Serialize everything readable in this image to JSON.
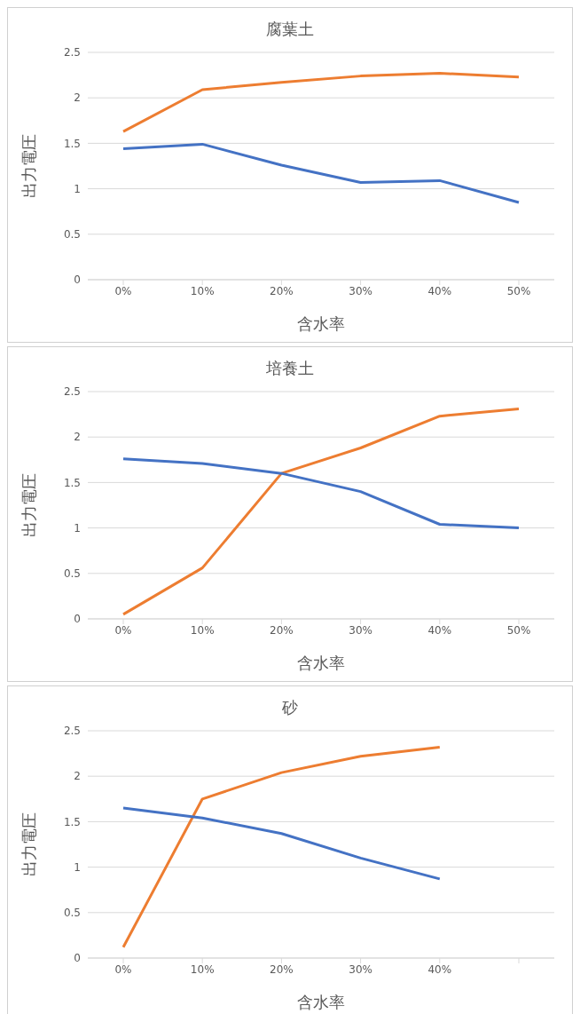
{
  "chart_data": [
    {
      "type": "line",
      "title": "腐葉土",
      "xlabel": "含水率",
      "ylabel": "出力電圧",
      "categories": [
        "0%",
        "10%",
        "20%",
        "30%",
        "40%",
        "50%"
      ],
      "ylim": [
        0,
        2.5
      ],
      "yticks": [
        0,
        0.5,
        1,
        1.5,
        2,
        2.5
      ],
      "grid": "y",
      "marker": "none",
      "series": [
        {
          "color": "#ed7d31",
          "values": [
            1.63,
            2.09,
            2.17,
            2.24,
            2.27,
            2.23
          ]
        },
        {
          "color": "#4472c4",
          "values": [
            1.44,
            1.49,
            1.26,
            1.07,
            1.09,
            0.85
          ]
        }
      ]
    },
    {
      "type": "line",
      "title": "培養土",
      "xlabel": "含水率",
      "ylabel": "出力電圧",
      "categories": [
        "0%",
        "10%",
        "20%",
        "30%",
        "40%",
        "50%"
      ],
      "ylim": [
        0,
        2.5
      ],
      "yticks": [
        0,
        0.5,
        1,
        1.5,
        2,
        2.5
      ],
      "grid": "y",
      "marker": "none",
      "series": [
        {
          "color": "#ed7d31",
          "values": [
            0.05,
            0.56,
            1.6,
            1.88,
            2.23,
            2.31
          ]
        },
        {
          "color": "#4472c4",
          "values": [
            1.76,
            1.71,
            1.6,
            1.4,
            1.04,
            1.0
          ]
        }
      ]
    },
    {
      "type": "line",
      "title": "砂",
      "xlabel": "含水率",
      "ylabel": "出力電圧",
      "categories": [
        "0%",
        "10%",
        "20%",
        "30%",
        "40%",
        null
      ],
      "ylim": [
        0,
        2.5
      ],
      "yticks": [
        0,
        0.5,
        1,
        1.5,
        2,
        2.5
      ],
      "grid": "y",
      "marker": "none",
      "series": [
        {
          "color": "#ed7d31",
          "values": [
            0.12,
            1.75,
            2.04,
            2.22,
            2.32,
            null
          ]
        },
        {
          "color": "#4472c4",
          "values": [
            1.65,
            1.54,
            1.37,
            1.1,
            0.87,
            null
          ]
        }
      ]
    }
  ]
}
